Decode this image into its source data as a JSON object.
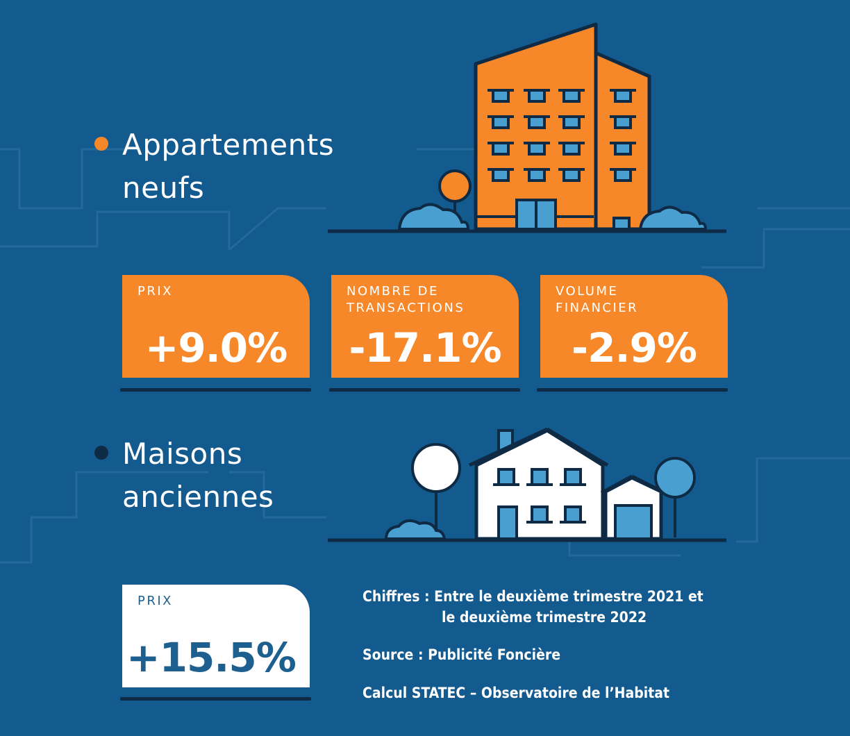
{
  "section1": {
    "title_line1": "Appartements",
    "title_line2": "neufs",
    "bullet_color": "#f6882a",
    "icon": "apartment-building-icon",
    "cards": [
      {
        "label_line1": "PRIX",
        "label_line2": "",
        "value": "+9.0%"
      },
      {
        "label_line1": "NOMBRE DE",
        "label_line2": "TRANSACTIONS",
        "value": "-17.1%"
      },
      {
        "label_line1": "VOLUME",
        "label_line2": "FINANCIER",
        "value": "-2.9%"
      }
    ]
  },
  "section2": {
    "title_line1": "Maisons",
    "title_line2": "anciennes",
    "bullet_color": "#0e2a45",
    "icon": "house-icon",
    "card": {
      "label": "PRIX",
      "value": "+15.5%"
    }
  },
  "notes": {
    "chiffres_line1": "Chiffres : Entre le deuxième trimestre 2021 et",
    "chiffres_line2": "le  deuxième trimestre 2022",
    "source": "Source :  Publicité Foncière",
    "calcul": "Calcul STATEC – Observatoire de l’Habitat"
  },
  "colors": {
    "background": "#135a8e",
    "orange": "#f6882a",
    "dark": "#0e2a45",
    "light_blue": "#4a9fd1"
  }
}
